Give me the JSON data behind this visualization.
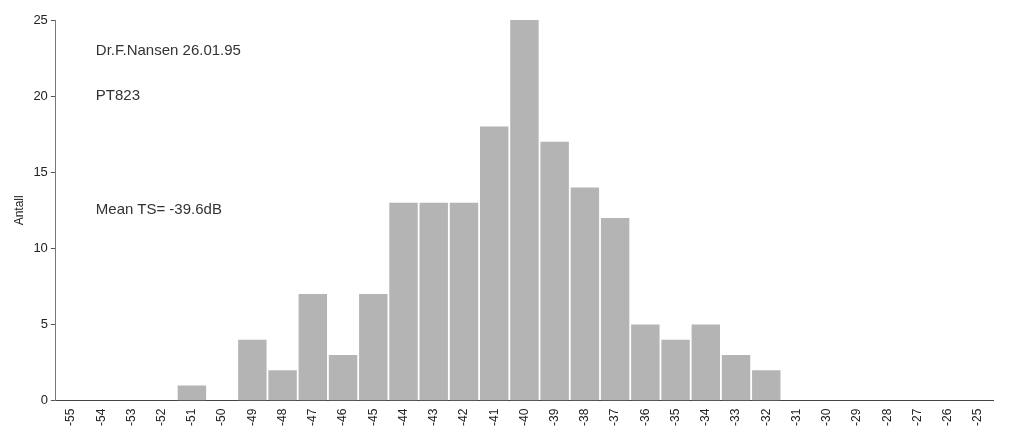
{
  "chart_data": {
    "type": "bar",
    "ylabel": "Antall",
    "categories": [
      "-55",
      "-54",
      "-53",
      "-52",
      "-51",
      "-50",
      "-49",
      "-48",
      "-47",
      "-46",
      "-45",
      "-44",
      "-43",
      "-42",
      "-41",
      "-40",
      "-39",
      "-38",
      "-37",
      "-36",
      "-35",
      "-34",
      "-33",
      "-32",
      "-31",
      "-30",
      "-29",
      "-28",
      "-27",
      "-26",
      "-25"
    ],
    "values": [
      0,
      0,
      0,
      0,
      1,
      0,
      4,
      2,
      7,
      3,
      7,
      13,
      13,
      13,
      18,
      25,
      17,
      14,
      12,
      5,
      4,
      5,
      3,
      2,
      0,
      0,
      0,
      0,
      0,
      0,
      0
    ],
    "color": "#b4b4b4",
    "ylim": [
      0,
      25
    ],
    "yticks": [
      0,
      5,
      10,
      15,
      20,
      25
    ],
    "grid": false,
    "annotations": [
      "Dr.F.Nansen 26.01.95",
      "PT823",
      "Mean TS= -39.6dB"
    ]
  }
}
